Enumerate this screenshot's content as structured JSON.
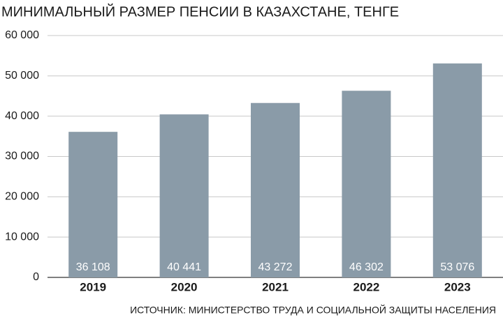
{
  "chart_data": {
    "type": "bar",
    "title": "МИНИМАЛЬНЫЙ РАЗМЕР ПЕНСИИ В КАЗАХСТАНЕ, ТЕНГЕ",
    "source": "ИСТОЧНИК: МИНИСТЕРСТВО ТРУДА И СОЦИАЛЬНОЙ ЗАЩИТЫ НАСЕЛЕНИЯ",
    "categories": [
      "2019",
      "2020",
      "2021",
      "2022",
      "2023"
    ],
    "values": [
      36108,
      40441,
      43272,
      46302,
      53076
    ],
    "value_labels": [
      "36 108",
      "40 441",
      "43 272",
      "46 302",
      "53 076"
    ],
    "color": "#8a9ba8",
    "ylim": [
      0,
      60000
    ],
    "yticks": [
      0,
      {
        "value": 10000,
        "label": "10 000"
      },
      {
        "value": 20000,
        "label": "20 000"
      },
      {
        "value": 30000,
        "label": "30 000"
      },
      {
        "value": 40000,
        "label": "40 000"
      },
      {
        "value": 50000,
        "label": "50 000"
      },
      {
        "value": 60000,
        "label": "60 000"
      }
    ],
    "grid": true
  }
}
